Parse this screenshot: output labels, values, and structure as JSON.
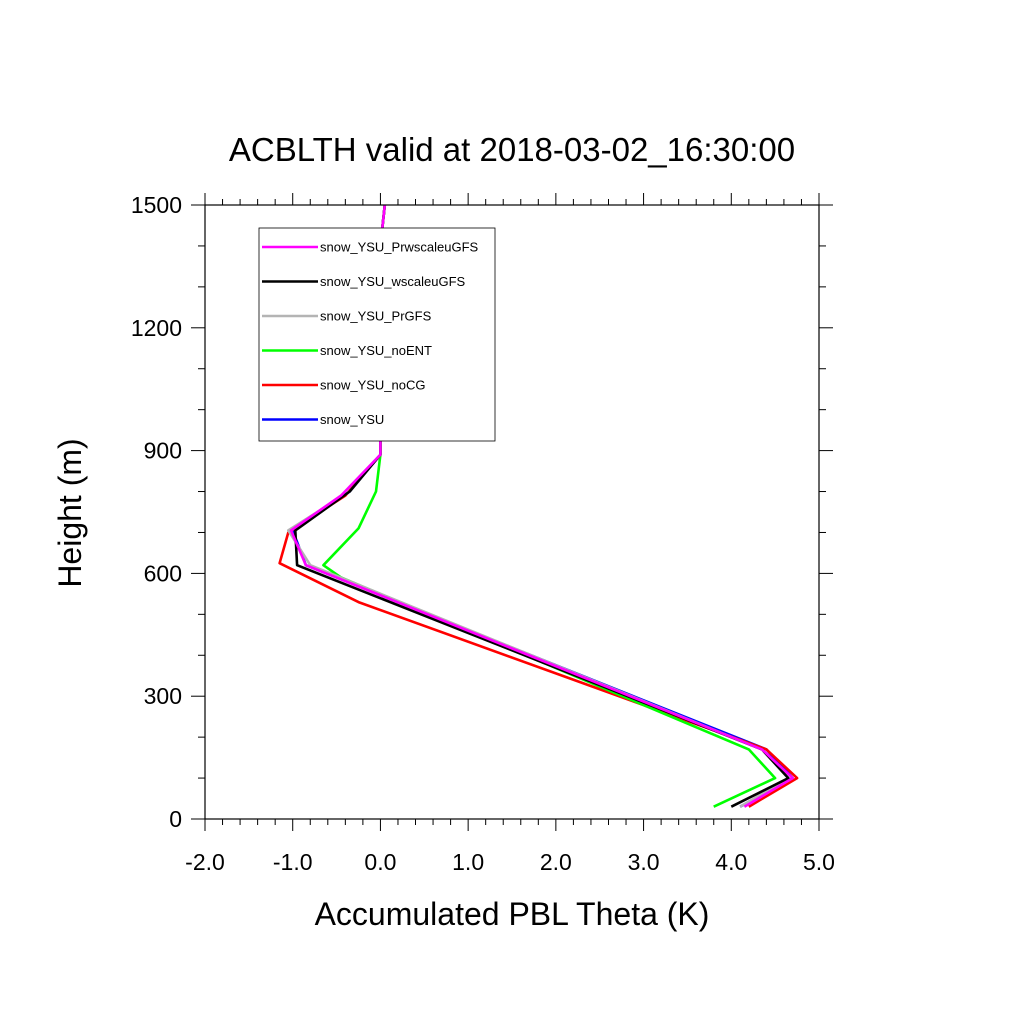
{
  "chart_data": {
    "type": "line",
    "title": "ACBLTH valid at 2018-03-02_16:30:00",
    "xlabel": "Accumulated PBL Theta (K)",
    "ylabel": "Height (m)",
    "xlim": [
      -2.0,
      5.0
    ],
    "ylim": [
      0,
      1500
    ],
    "xticks": [
      -2.0,
      -1.0,
      0.0,
      1.0,
      2.0,
      3.0,
      4.0,
      5.0
    ],
    "xtick_labels": [
      "-2.0",
      "-1.0",
      "0.0",
      "1.0",
      "2.0",
      "3.0",
      "4.0",
      "5.0"
    ],
    "yticks": [
      0,
      300,
      600,
      900,
      1200,
      1500
    ],
    "ytick_labels": [
      "0",
      "300",
      "600",
      "900",
      "1200",
      "1500"
    ],
    "grid": false,
    "legend_position": "top-left",
    "series": [
      {
        "name": "snow_YSU_PrwscaleuGFS",
        "color": "#ff00ff",
        "points": [
          [
            4.15,
            30
          ],
          [
            4.7,
            100
          ],
          [
            4.35,
            170
          ],
          [
            -0.85,
            620
          ],
          [
            -1.02,
            705
          ],
          [
            -0.45,
            790
          ],
          [
            0.0,
            890
          ],
          [
            0.0,
            1400
          ],
          [
            0.05,
            1500
          ]
        ]
      },
      {
        "name": "snow_YSU_wscaleuGFS",
        "color": "#000000",
        "points": [
          [
            4.0,
            30
          ],
          [
            4.65,
            100
          ],
          [
            4.35,
            170
          ],
          [
            -0.95,
            620
          ],
          [
            -0.97,
            705
          ],
          [
            -0.35,
            800
          ],
          [
            0.0,
            890
          ],
          [
            0.0,
            1400
          ],
          [
            0.05,
            1500
          ]
        ]
      },
      {
        "name": "snow_YSU_PrGFS",
        "color": "#b4b4b4",
        "points": [
          [
            4.1,
            30
          ],
          [
            4.65,
            100
          ],
          [
            4.35,
            170
          ],
          [
            -0.8,
            620
          ],
          [
            -1.05,
            705
          ],
          [
            -0.35,
            800
          ],
          [
            0.0,
            890
          ],
          [
            0.0,
            1400
          ],
          [
            0.05,
            1500
          ]
        ]
      },
      {
        "name": "snow_YSU_noENT",
        "color": "#00ff00",
        "points": [
          [
            3.8,
            30
          ],
          [
            4.5,
            100
          ],
          [
            4.2,
            170
          ],
          [
            -0.45,
            590
          ],
          [
            -0.65,
            620
          ],
          [
            -0.25,
            710
          ],
          [
            -0.05,
            800
          ],
          [
            0.0,
            890
          ],
          [
            0.0,
            1400
          ],
          [
            0.05,
            1500
          ]
        ]
      },
      {
        "name": "snow_YSU_noCG",
        "color": "#ff0000",
        "points": [
          [
            4.2,
            30
          ],
          [
            4.75,
            100
          ],
          [
            4.4,
            170
          ],
          [
            -0.25,
            530
          ],
          [
            -1.15,
            625
          ],
          [
            -1.05,
            700
          ],
          [
            -0.4,
            790
          ],
          [
            0.0,
            890
          ],
          [
            0.0,
            1400
          ],
          [
            0.05,
            1500
          ]
        ]
      },
      {
        "name": "snow_YSU",
        "color": "#0000ff",
        "points": [
          [
            4.1,
            30
          ],
          [
            4.7,
            100
          ],
          [
            4.4,
            170
          ],
          [
            -0.85,
            620
          ],
          [
            -1.0,
            705
          ],
          [
            -0.35,
            800
          ],
          [
            0.0,
            890
          ],
          [
            0.0,
            1400
          ],
          [
            0.05,
            1500
          ]
        ]
      }
    ]
  }
}
